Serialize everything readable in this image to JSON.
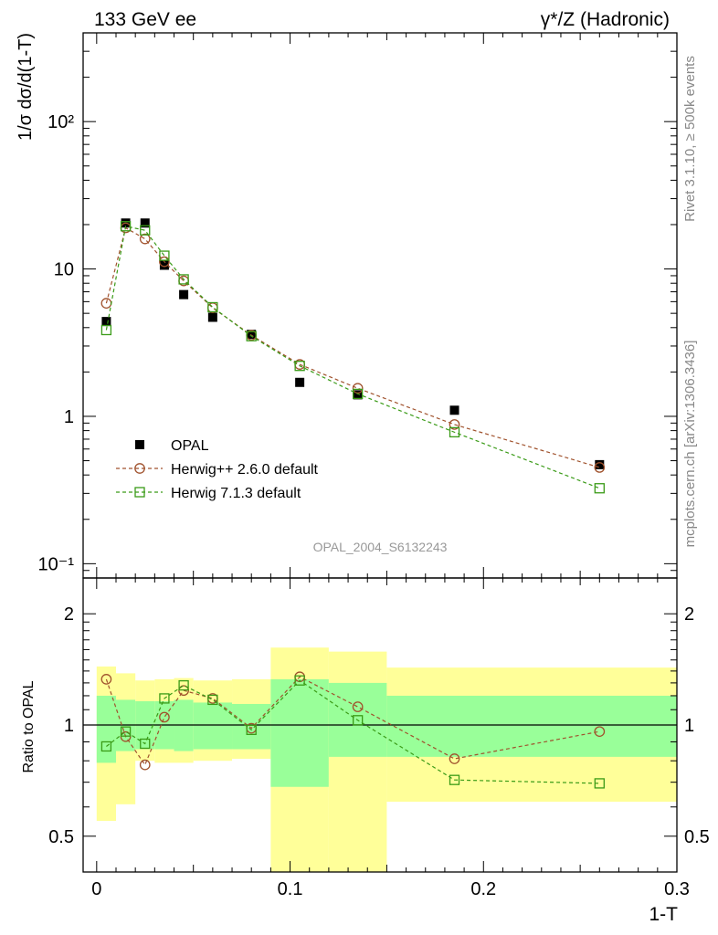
{
  "header": {
    "left_title": "133 GeV ee",
    "right_title": "γ*/Z (Hadronic)"
  },
  "side_labels": {
    "rivet": "Rivet 3.1.10, ≥ 500k events",
    "mcplots": "mcplots.cern.ch [arXiv:1306.3436]"
  },
  "watermark": "OPAL_2004_S6132243",
  "colors": {
    "data": "#000000",
    "herwig_pp": "#a0522d",
    "herwig_7": "#3a9b17",
    "band_inner": "#99ff99",
    "band_outer": "#ffff99"
  },
  "chart_data": [
    {
      "type": "scatter",
      "ylabel": "1/σ dσ/d(1-T)",
      "yscale": "log",
      "ylim": [
        0.08,
        400
      ],
      "xlim": [
        -0.007,
        0.3
      ],
      "yticks": [
        {
          "value": 0.1,
          "label": "10⁻¹"
        },
        {
          "value": 1,
          "label": "1"
        },
        {
          "value": 10,
          "label": "10"
        },
        {
          "value": 100,
          "label": "10²"
        }
      ],
      "x": [
        0.005,
        0.015,
        0.025,
        0.035,
        0.045,
        0.06,
        0.08,
        0.105,
        0.135,
        0.185,
        0.26
      ],
      "series": [
        {
          "name": "OPAL",
          "marker": "square-filled",
          "values": [
            4.4,
            20.5,
            20.5,
            10.6,
            6.7,
            4.7,
            3.6,
            1.7,
            1.4,
            1.1,
            0.47
          ]
        },
        {
          "name": "Herwig++ 2.6.0 default",
          "marker": "circle-open",
          "values": [
            5.85,
            19.0,
            16.0,
            11.2,
            8.3,
            5.45,
            3.55,
            2.25,
            1.55,
            0.88,
            0.45
          ]
        },
        {
          "name": "Herwig 7.1.3 default",
          "marker": "square-open",
          "values": [
            3.85,
            19.5,
            18.3,
            12.3,
            8.5,
            5.5,
            3.5,
            2.2,
            1.42,
            0.78,
            0.325
          ]
        }
      ],
      "legend": "bottom-left"
    },
    {
      "type": "scatter",
      "ylabel": "Ratio to OPAL",
      "xlabel": "1-T",
      "yscale": "log",
      "ylim": [
        0.4,
        2.5
      ],
      "xlim": [
        -0.007,
        0.3
      ],
      "xticks": [
        {
          "value": 0,
          "label": "0"
        },
        {
          "value": 0.1,
          "label": "0.1"
        },
        {
          "value": 0.2,
          "label": "0.2"
        },
        {
          "value": 0.3,
          "label": "0.3"
        }
      ],
      "yticks": [
        {
          "value": 0.5,
          "label": "0.5"
        },
        {
          "value": 1,
          "label": "1"
        },
        {
          "value": 2,
          "label": "2"
        }
      ],
      "x": [
        0.005,
        0.015,
        0.025,
        0.035,
        0.045,
        0.06,
        0.08,
        0.105,
        0.135,
        0.185,
        0.26
      ],
      "series": [
        {
          "name": "Herwig++ 2.6.0 default",
          "marker": "circle-open",
          "values": [
            1.33,
            0.93,
            0.78,
            1.05,
            1.24,
            1.18,
            0.98,
            1.35,
            1.12,
            0.81,
            0.96
          ]
        },
        {
          "name": "Herwig 7.1.3 default",
          "marker": "square-open",
          "values": [
            0.875,
            0.96,
            0.89,
            1.18,
            1.28,
            1.17,
            0.97,
            1.32,
            1.03,
            0.71,
            0.695
          ]
        }
      ],
      "bands": {
        "x_edges": [
          0.0,
          0.01,
          0.02,
          0.03,
          0.04,
          0.05,
          0.07,
          0.09,
          0.12,
          0.15,
          0.3
        ],
        "inner_low": [
          0.79,
          0.85,
          0.86,
          0.86,
          0.85,
          0.86,
          0.86,
          0.68,
          0.82,
          0.82
        ],
        "inner_high": [
          1.2,
          1.17,
          1.16,
          1.16,
          1.17,
          1.15,
          1.14,
          1.33,
          1.3,
          1.2
        ],
        "outer_low": [
          0.55,
          0.61,
          0.8,
          0.79,
          0.79,
          0.8,
          0.81,
          0.39,
          0.4,
          0.62
        ],
        "outer_high": [
          1.44,
          1.38,
          1.32,
          1.33,
          1.34,
          1.32,
          1.33,
          1.62,
          1.58,
          1.43
        ]
      }
    }
  ]
}
